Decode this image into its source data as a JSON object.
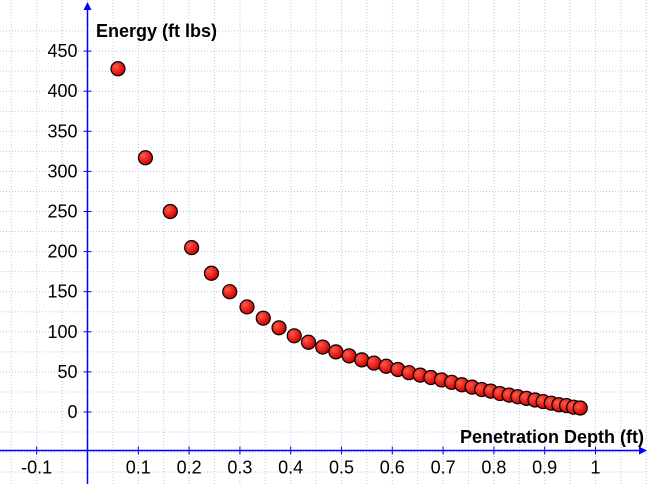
{
  "chart_data": {
    "type": "scatter",
    "xlabel": "Penetration Depth (ft)",
    "ylabel": "Energy (ft lbs)",
    "xlim": [
      -0.15,
      1.1
    ],
    "ylim": [
      -60,
      480
    ],
    "x_ticks": [
      -0.1,
      0.1,
      0.2,
      0.3,
      0.4,
      0.5,
      0.6,
      0.7,
      0.8,
      0.9,
      1
    ],
    "x_tick_labels": [
      "-0.1",
      "0.1",
      "0.2",
      "0.3",
      "0.4",
      "0.5",
      "0.6",
      "0.7",
      "0.8",
      "0.9",
      "1"
    ],
    "y_ticks": [
      0,
      50,
      100,
      150,
      200,
      250,
      300,
      350,
      400,
      450
    ],
    "y_tick_labels": [
      "0",
      "50",
      "100",
      "150",
      "200",
      "250",
      "300",
      "350",
      "400",
      "450"
    ],
    "grid": true,
    "point_color": "#e60000",
    "axis_color": "#0000ff",
    "x": [
      0.06,
      0.114,
      0.163,
      0.205,
      0.244,
      0.28,
      0.314,
      0.346,
      0.377,
      0.407,
      0.435,
      0.463,
      0.489,
      0.515,
      0.54,
      0.564,
      0.588,
      0.611,
      0.633,
      0.655,
      0.676,
      0.697,
      0.717,
      0.737,
      0.757,
      0.776,
      0.794,
      0.812,
      0.83,
      0.847,
      0.864,
      0.881,
      0.897,
      0.913,
      0.928,
      0.943,
      0.957,
      0.97
    ],
    "y": [
      428,
      317,
      250,
      205,
      173,
      150,
      131,
      117,
      105,
      95,
      87,
      81,
      75,
      70,
      65,
      61,
      57,
      53,
      49,
      46,
      43,
      40,
      37,
      34,
      31,
      28,
      26,
      23,
      21,
      19,
      17,
      15,
      13,
      11,
      9,
      8,
      6,
      5
    ]
  }
}
